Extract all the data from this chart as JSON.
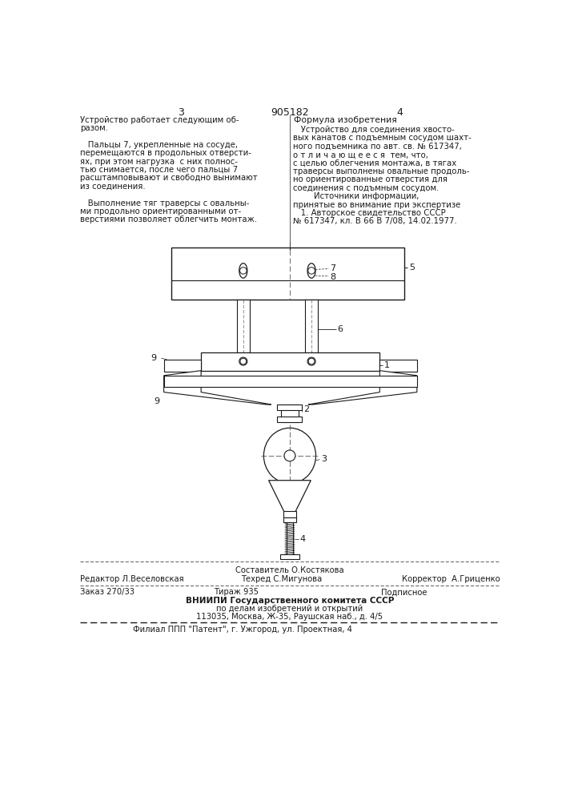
{
  "page_color": "#ffffff",
  "text_color": "#1a1a1a",
  "line_color": "#1a1a1a",
  "page_number_left": "3",
  "page_number_center": "905182",
  "page_number_right": "4",
  "left_col_text": [
    "Устройство работает следующим об-",
    "разом.",
    "",
    "   Пальцы 7, укрепленные на сосуде,",
    "перемещаются в продольных отверсти-",
    "ях, при этом нагрузка  с них полнос-",
    "тью снимается, после чего пальцы 7",
    "расштамповывают и свободно вынимают",
    "из соединения.",
    "",
    "   Выполнение тяг траверсы с овальны-",
    "ми продольно ориентированными от-",
    "верстиями позволяет облегчить монтаж."
  ],
  "right_col_title": "Формула изобретения",
  "right_col_text": [
    "   Устройство для соединения хвосто-",
    "вых канатов с подъемным сосудом шахт-",
    "ного подъемника по авт. св. № 617347,",
    "о т л и ч а ю щ е е с я  тем, что,",
    "с целью облегчения монтажа, в тягах",
    "траверсы выполнены овальные продоль-",
    "но ориентированные отверстия для",
    "соединения с подъмным сосудом.",
    "        Источники информации,",
    "принятые во внимание при экспертизе",
    "   1. Авторское свидетельство СССР",
    "№ 617347, кл. В 66 В 7/08, 14.02.1977."
  ],
  "footer_editor": "Редактор Л.Веселовская",
  "footer_composer_top": "Составитель О.Костякова",
  "footer_tech_bot": "Техред С.Мигунова",
  "footer_corrector": "Корректор  А.Гриценко",
  "footer_order": "Заказ 270/33",
  "footer_tirazh": "Тираж 935",
  "footer_podpis": "Подписное",
  "footer_vniip1": "ВНИИПИ Государственного комитета СССР",
  "footer_vniip2": "по делам изобретений и открытий",
  "footer_vniip3": "113035, Москва, Ж-35, Раушская наб., д. 4/5",
  "footer_filial": "Филиал ППП \"Патент\", г. Ужгород, ул. Проектная, 4",
  "note_5": "5",
  "note_6": "6",
  "note_7": "7",
  "note_8": "8",
  "note_1": "1",
  "note_9a": "9",
  "note_9b": "9",
  "note_2": "2",
  "note_3": "3",
  "note_4": "4"
}
